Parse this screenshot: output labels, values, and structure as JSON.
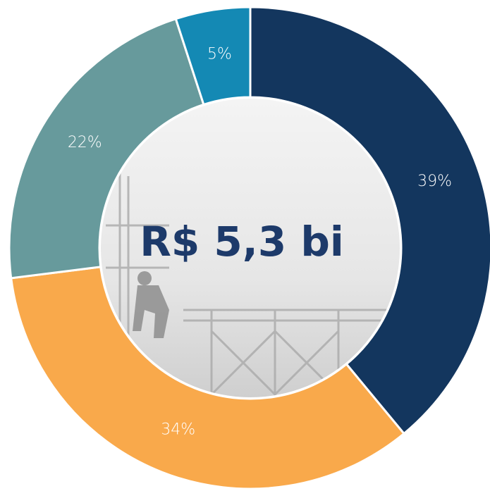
{
  "chart_data": {
    "type": "pie",
    "donut": true,
    "center_label": "R$ 5,3 bi",
    "values": [
      39,
      34,
      22,
      5
    ],
    "value_labels": [
      "39%",
      "34%",
      "22%",
      "5%"
    ],
    "colors": [
      "#13365e",
      "#f9a94b",
      "#679a9c",
      "#1489b4"
    ]
  }
}
